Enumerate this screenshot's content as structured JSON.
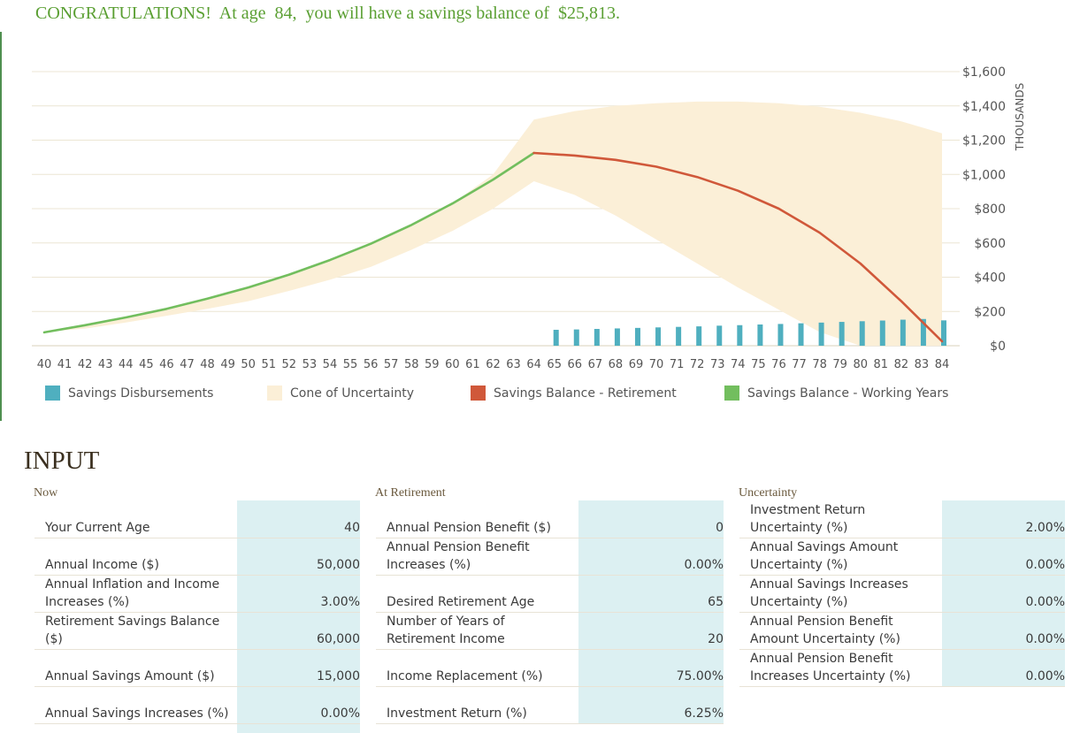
{
  "banner": "CONGRATULATIONS!  At age  84,  you will have a savings balance of  $25,813.",
  "colors": {
    "disbursement": "#4fafbf",
    "cone": "#fbefd7",
    "retirement": "#d0583a",
    "working": "#72be5e",
    "banner": "#5a9f32",
    "input_bg": "#dcf0f2"
  },
  "chart_data": {
    "type": "line",
    "x": [
      40,
      41,
      42,
      43,
      44,
      45,
      46,
      47,
      48,
      49,
      50,
      51,
      52,
      53,
      54,
      55,
      56,
      57,
      58,
      59,
      60,
      61,
      62,
      63,
      64,
      65,
      66,
      67,
      68,
      69,
      70,
      71,
      72,
      73,
      74,
      75,
      76,
      77,
      78,
      79,
      80,
      81,
      82,
      83,
      84
    ],
    "xlim": [
      40,
      84
    ],
    "ylim": [
      0,
      1600
    ],
    "y_tick_labels": [
      "$0",
      "$200",
      "$400",
      "$600",
      "$800",
      "$1,000",
      "$1,200",
      "$1,400",
      "$1,600"
    ],
    "y_tick_values": [
      0,
      200,
      400,
      600,
      800,
      1000,
      1200,
      1400,
      1600
    ],
    "ylabel": "THOUSANDS",
    "grid": true,
    "legend_position": "bottom",
    "series": [
      {
        "name": "Savings Disbursements",
        "kind": "bar",
        "x": [
          65,
          66,
          67,
          68,
          69,
          70,
          71,
          72,
          73,
          74,
          75,
          76,
          77,
          78,
          79,
          80,
          81,
          82,
          83,
          84
        ],
        "values": [
          93,
          95,
          98,
          101,
          104,
          107,
          110,
          113,
          117,
          120,
          124,
          127,
          131,
          135,
          139,
          143,
          147,
          152,
          156,
          148
        ]
      },
      {
        "name": "Cone of Uncertainty",
        "kind": "band",
        "x": [
          40,
          42,
          44,
          46,
          48,
          50,
          52,
          54,
          56,
          58,
          60,
          62,
          64,
          66,
          68,
          70,
          72,
          74,
          76,
          78,
          80,
          82,
          84
        ],
        "upper": [
          80,
          120,
          165,
          215,
          270,
          335,
          410,
          495,
          590,
          700,
          830,
          1000,
          1320,
          1370,
          1400,
          1415,
          1425,
          1425,
          1415,
          1395,
          1360,
          1310,
          1240
        ],
        "lower": [
          80,
          100,
          135,
          175,
          215,
          260,
          320,
          385,
          460,
          560,
          670,
          800,
          960,
          880,
          760,
          620,
          480,
          340,
          210,
          80,
          0,
          0,
          0
        ]
      },
      {
        "name": "Savings Balance - Retirement",
        "kind": "line",
        "x": [
          64,
          66,
          68,
          70,
          72,
          74,
          76,
          78,
          80,
          82,
          84
        ],
        "values": [
          1125,
          1110,
          1085,
          1045,
          985,
          905,
          800,
          660,
          480,
          260,
          26
        ]
      },
      {
        "name": "Savings Balance - Working Years",
        "kind": "line",
        "x": [
          40,
          42,
          44,
          46,
          48,
          50,
          52,
          54,
          56,
          58,
          60,
          62,
          64
        ],
        "values": [
          78,
          120,
          165,
          215,
          275,
          340,
          415,
          500,
          595,
          705,
          830,
          970,
          1125
        ]
      }
    ]
  },
  "legend": [
    {
      "label": "Savings Disbursements",
      "color": "#4fafbf"
    },
    {
      "label": "Cone of Uncertainty",
      "color": "#fbefd7"
    },
    {
      "label": "Savings Balance - Retirement",
      "color": "#d0583a"
    },
    {
      "label": "Savings Balance - Working Years",
      "color": "#72be5e"
    }
  ],
  "input": {
    "title": "INPUT",
    "now": {
      "heading": "Now",
      "rows": [
        {
          "label": "Your Current Age",
          "value": "40"
        },
        {
          "label": "Annual Income ($)",
          "value": "50,000"
        },
        {
          "label": "Annual Inflation and Income Increases (%)",
          "value": "3.00%"
        },
        {
          "label": "Retirement Savings Balance ($)",
          "value": "60,000"
        },
        {
          "label": "Annual Savings Amount ($)",
          "value": "15,000"
        },
        {
          "label": "Annual Savings Increases (%)",
          "value": "0.00%"
        }
      ]
    },
    "retirement": {
      "heading": "At Retirement",
      "rows": [
        {
          "label": "Annual Pension Benefit ($)",
          "value": "0"
        },
        {
          "label": "Annual Pension Benefit Increases (%)",
          "value": "0.00%"
        },
        {
          "label": "Desired Retirement Age",
          "value": "65"
        },
        {
          "label": "Number of Years of Retirement Income",
          "value": "20"
        },
        {
          "label": "Income Replacement (%)",
          "value": "75.00%"
        },
        {
          "label": "Investment Return (%)",
          "value": "6.25%"
        }
      ]
    },
    "uncertainty": {
      "heading": "Uncertainty",
      "rows": [
        {
          "label": "Investment Return Uncertainty (%)",
          "value": "2.00%"
        },
        {
          "label": "Annual Savings Amount Uncertainty (%)",
          "value": "0.00%"
        },
        {
          "label": "Annual Savings Increases Uncertainty (%)",
          "value": "0.00%"
        },
        {
          "label": "Annual Pension Benefit Amount Uncertainty (%)",
          "value": "0.00%"
        },
        {
          "label": "Annual Pension Benefit Increases Uncertainty (%)",
          "value": "0.00%"
        }
      ]
    }
  }
}
